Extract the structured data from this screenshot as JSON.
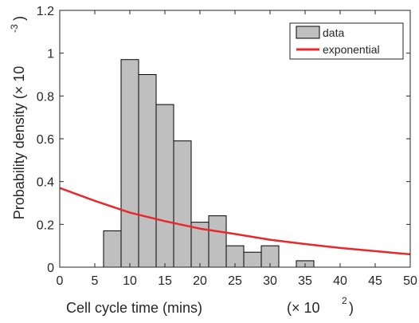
{
  "chart_data": {
    "type": "bar",
    "xlabel": "Cell cycle time (mins)",
    "xlabel_multiplier": "(× 10",
    "xlabel_multiplier_exponent": "2",
    "xlabel_multiplier_close": ")",
    "ylabel": "Probability density (× 10",
    "ylabel_exponent": "-3",
    "ylabel_close": ")",
    "xlim": [
      0,
      50
    ],
    "ylim": [
      0,
      1.2
    ],
    "xticks": [
      0,
      5,
      10,
      15,
      20,
      25,
      30,
      35,
      40,
      45,
      50
    ],
    "yticks": [
      0,
      0.2,
      0.4,
      0.6,
      0.8,
      1,
      1.2
    ],
    "ytick_labels": [
      "0",
      "0.2",
      "0.4",
      "0.6",
      "0.8",
      "1",
      "1.2"
    ],
    "bin_width": 2.5,
    "series": [
      {
        "name": "data",
        "kind": "histogram",
        "color": "#bfbfbf",
        "edge_color": "#000000",
        "bins": [
          {
            "center": 7.5,
            "value": 0.17
          },
          {
            "center": 10,
            "value": 0.97
          },
          {
            "center": 12.5,
            "value": 0.9
          },
          {
            "center": 15,
            "value": 0.76
          },
          {
            "center": 17.5,
            "value": 0.59
          },
          {
            "center": 20,
            "value": 0.21
          },
          {
            "center": 22.5,
            "value": 0.24
          },
          {
            "center": 25,
            "value": 0.1
          },
          {
            "center": 27.5,
            "value": 0.07
          },
          {
            "center": 30,
            "value": 0.1
          },
          {
            "center": 35,
            "value": 0.03
          }
        ]
      },
      {
        "name": "exponential",
        "kind": "line",
        "color": "#e8282b",
        "x": [
          0,
          5,
          10,
          15,
          20,
          25,
          30,
          35,
          40,
          45,
          50
        ],
        "y": [
          0.37,
          0.31,
          0.255,
          0.215,
          0.18,
          0.155,
          0.128,
          0.108,
          0.09,
          0.075,
          0.06
        ]
      }
    ],
    "legend_position": "top-right",
    "grid": false
  }
}
